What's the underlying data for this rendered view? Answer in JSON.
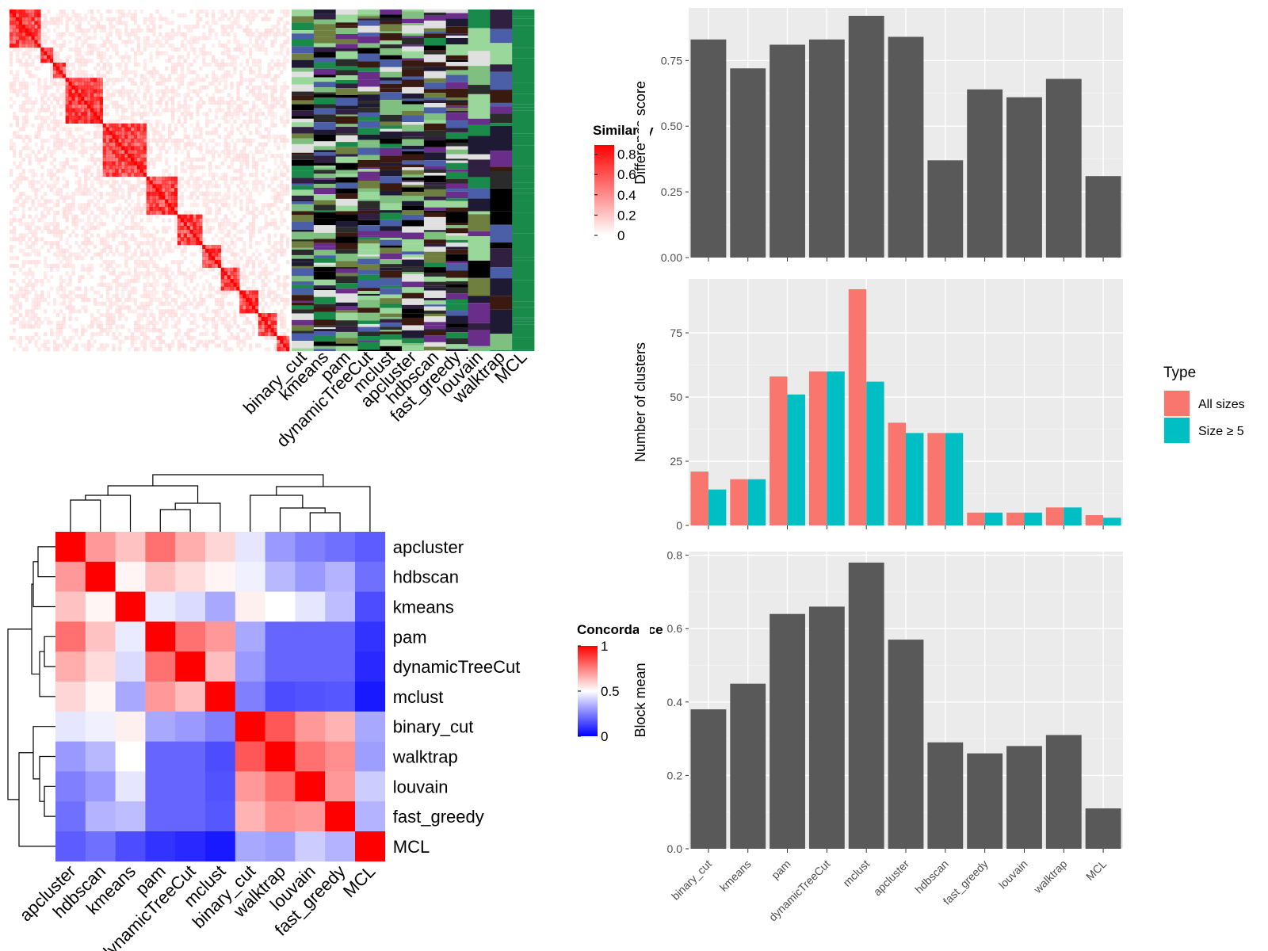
{
  "methods": [
    "binary_cut",
    "kmeans",
    "pam",
    "dynamicTreeCut",
    "mclust",
    "apcluster",
    "hdbscan",
    "fast_greedy",
    "louvain",
    "walktrap",
    "MCL"
  ],
  "similarity_heatmap": {
    "legend_title": "Similarity",
    "legend_ticks": [
      "0.8",
      "0.6",
      "0.4",
      "0.2",
      "0"
    ],
    "colors": {
      "low": "#ffffff",
      "high": "#ff0000"
    }
  },
  "concordance_heatmap": {
    "legend_title": "Concordance",
    "legend_ticks": [
      "1",
      "0.5",
      "0"
    ],
    "order": [
      "apcluster",
      "hdbscan",
      "kmeans",
      "pam",
      "dynamicTreeCut",
      "mclust",
      "binary_cut",
      "walktrap",
      "louvain",
      "fast_greedy",
      "MCL"
    ],
    "colors": {
      "low": "#0000ff",
      "mid": "#ffffff",
      "high": "#ff0000"
    },
    "matrix": [
      [
        1.0,
        0.7,
        0.62,
        0.78,
        0.66,
        0.58,
        0.45,
        0.3,
        0.25,
        0.22,
        0.18
      ],
      [
        0.7,
        1.0,
        0.52,
        0.62,
        0.57,
        0.52,
        0.47,
        0.36,
        0.3,
        0.35,
        0.22
      ],
      [
        0.62,
        0.52,
        1.0,
        0.46,
        0.43,
        0.33,
        0.53,
        0.5,
        0.45,
        0.37,
        0.15
      ],
      [
        0.78,
        0.62,
        0.46,
        1.0,
        0.78,
        0.7,
        0.33,
        0.2,
        0.2,
        0.2,
        0.1
      ],
      [
        0.66,
        0.57,
        0.43,
        0.78,
        1.0,
        0.63,
        0.3,
        0.2,
        0.2,
        0.2,
        0.08
      ],
      [
        0.58,
        0.52,
        0.33,
        0.7,
        0.63,
        1.0,
        0.25,
        0.15,
        0.16,
        0.17,
        0.05
      ],
      [
        0.45,
        0.47,
        0.53,
        0.33,
        0.3,
        0.25,
        1.0,
        0.83,
        0.7,
        0.65,
        0.33
      ],
      [
        0.3,
        0.36,
        0.5,
        0.2,
        0.2,
        0.15,
        0.83,
        1.0,
        0.78,
        0.72,
        0.31
      ],
      [
        0.25,
        0.3,
        0.45,
        0.2,
        0.2,
        0.16,
        0.7,
        0.78,
        1.0,
        0.7,
        0.4
      ],
      [
        0.22,
        0.35,
        0.37,
        0.2,
        0.2,
        0.17,
        0.65,
        0.72,
        0.7,
        1.0,
        0.35
      ],
      [
        0.18,
        0.22,
        0.15,
        0.1,
        0.08,
        0.05,
        0.33,
        0.31,
        0.4,
        0.35,
        1.0
      ]
    ]
  },
  "chart_data": [
    {
      "type": "bar",
      "categories": [
        "binary_cut",
        "kmeans",
        "pam",
        "dynamicTreeCut",
        "mclust",
        "apcluster",
        "hdbscan",
        "fast_greedy",
        "louvain",
        "walktrap",
        "MCL"
      ],
      "values": [
        0.83,
        0.72,
        0.81,
        0.83,
        0.92,
        0.84,
        0.37,
        0.64,
        0.61,
        0.68,
        0.31
      ],
      "ylabel": "Difference score",
      "ylim": [
        0,
        0.95
      ],
      "yticks": [
        "0.00",
        "0.25",
        "0.50",
        "0.75"
      ],
      "grid": true,
      "bar_color": "#595959"
    },
    {
      "type": "bar",
      "categories": [
        "binary_cut",
        "kmeans",
        "pam",
        "dynamicTreeCut",
        "mclust",
        "apcluster",
        "hdbscan",
        "fast_greedy",
        "louvain",
        "walktrap",
        "MCL"
      ],
      "series": [
        {
          "name": "All sizes",
          "color": "#f8766d",
          "values": [
            21,
            18,
            58,
            60,
            92,
            40,
            36,
            5,
            5,
            7,
            4
          ]
        },
        {
          "name": "Size ≥ 5",
          "color": "#00bfc4",
          "values": [
            14,
            18,
            51,
            60,
            56,
            36,
            36,
            5,
            5,
            7,
            3
          ]
        }
      ],
      "ylabel": "Number of clusters",
      "ylim": [
        0,
        96
      ],
      "yticks": [
        "0",
        "25",
        "50",
        "75"
      ],
      "legend_title": "Type",
      "legend_position": "right",
      "grid": true
    },
    {
      "type": "bar",
      "categories": [
        "binary_cut",
        "kmeans",
        "pam",
        "dynamicTreeCut",
        "mclust",
        "apcluster",
        "hdbscan",
        "fast_greedy",
        "louvain",
        "walktrap",
        "MCL"
      ],
      "values": [
        0.38,
        0.45,
        0.64,
        0.66,
        0.78,
        0.57,
        0.29,
        0.26,
        0.28,
        0.31,
        0.11
      ],
      "ylabel": "Block mean",
      "ylim": [
        0,
        0.81
      ],
      "yticks": [
        "0.0",
        "0.2",
        "0.4",
        "0.6",
        "0.8"
      ],
      "grid": true,
      "bar_color": "#595959"
    }
  ]
}
